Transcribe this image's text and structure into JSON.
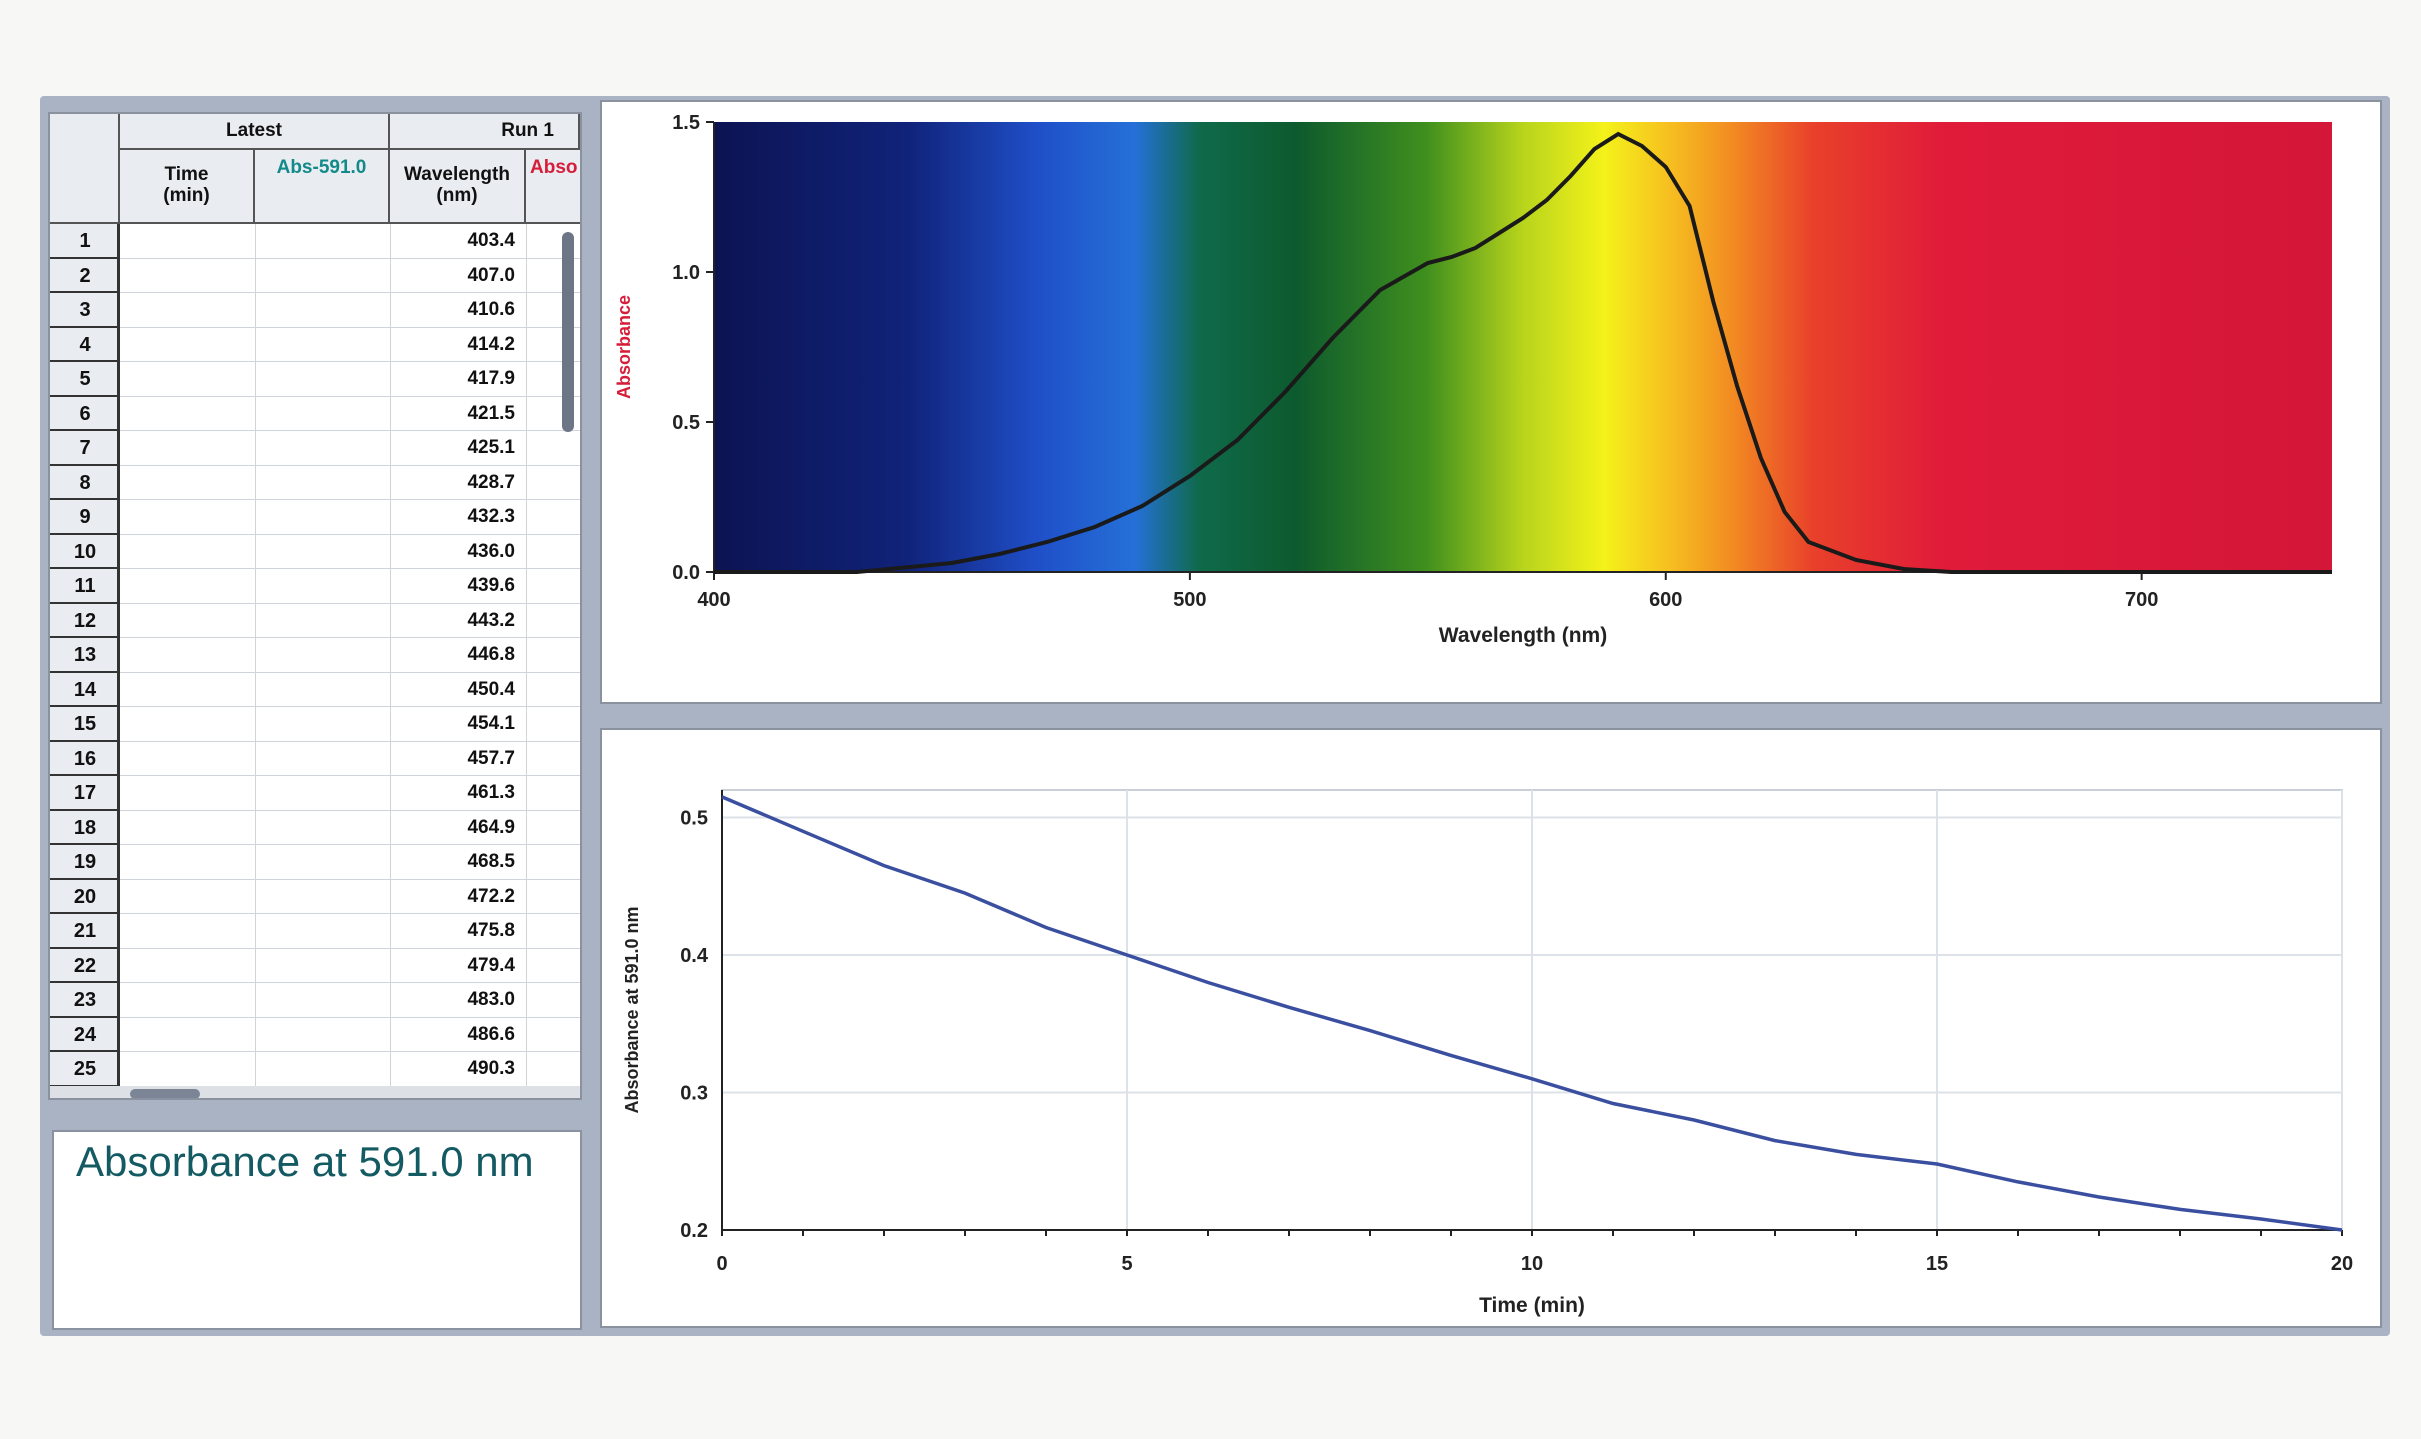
{
  "table": {
    "header": {
      "group_latest": "Latest",
      "group_run": "Run 1",
      "time_col": "Time",
      "time_unit": "(min)",
      "abs591_col": "Abs-591.0",
      "wavelength_col": "Wavelength",
      "wavelength_unit": "(nm)",
      "abs_col_partial": "Abso"
    },
    "row_numbers": [
      "1",
      "2",
      "3",
      "4",
      "5",
      "6",
      "7",
      "8",
      "9",
      "10",
      "11",
      "12",
      "13",
      "14",
      "15",
      "16",
      "17",
      "18",
      "19",
      "20",
      "21",
      "22",
      "23",
      "24",
      "25"
    ],
    "wavelengths": [
      "403.4",
      "407.0",
      "410.6",
      "414.2",
      "417.9",
      "421.5",
      "425.1",
      "428.7",
      "432.3",
      "436.0",
      "439.6",
      "443.2",
      "446.8",
      "450.4",
      "454.1",
      "457.7",
      "461.3",
      "464.9",
      "468.5",
      "472.2",
      "475.8",
      "479.4",
      "483.0",
      "486.6",
      "490.3"
    ]
  },
  "meter": {
    "label": "Absorbance at 591.0 nm"
  },
  "colors": {
    "spectrum_line": "#1a1a1a",
    "kinetics_line": "#3b4fa0",
    "abs_label": "#d61d3a",
    "meter_text": "#145a63"
  },
  "chart_data": [
    {
      "type": "line",
      "title": "",
      "xlabel": "Wavelength (nm)",
      "ylabel": "Absorbance",
      "xlim": [
        400,
        740
      ],
      "ylim": [
        0,
        1.5
      ],
      "xticks": [
        "400",
        "500",
        "600",
        "700"
      ],
      "yticks": [
        "0.0",
        "0.5",
        "1.0",
        "1.5"
      ],
      "background": "visible spectrum gradient",
      "grid": false,
      "series": [
        {
          "x": [
            400,
            430,
            450,
            460,
            470,
            480,
            490,
            500,
            510,
            520,
            530,
            540,
            550,
            555,
            560,
            565,
            570,
            575,
            580,
            585,
            590,
            595,
            600,
            605,
            610,
            615,
            620,
            625,
            630,
            640,
            650,
            660,
            680,
            700,
            720,
            740
          ],
          "y": [
            0.0,
            0.0,
            0.03,
            0.06,
            0.1,
            0.15,
            0.22,
            0.32,
            0.44,
            0.6,
            0.78,
            0.94,
            1.03,
            1.05,
            1.08,
            1.13,
            1.18,
            1.24,
            1.32,
            1.41,
            1.46,
            1.42,
            1.35,
            1.22,
            0.9,
            0.62,
            0.38,
            0.2,
            0.1,
            0.04,
            0.01,
            0.0,
            0.0,
            0.0,
            0.0,
            0.0
          ]
        }
      ]
    },
    {
      "type": "line",
      "title": "",
      "xlabel": "Time (min)",
      "ylabel": "Absorbance at 591.0 nm",
      "xlim": [
        0,
        20
      ],
      "ylim": [
        0.2,
        0.52
      ],
      "xticks": [
        "0",
        "5",
        "10",
        "15",
        "20"
      ],
      "yticks": [
        "0.2",
        "0.3",
        "0.4",
        "0.5"
      ],
      "grid": true,
      "series": [
        {
          "x": [
            0,
            1,
            2,
            3,
            4,
            5,
            6,
            7,
            8,
            9,
            10,
            11,
            12,
            13,
            14,
            15,
            16,
            17,
            18,
            19,
            20
          ],
          "y": [
            0.515,
            0.49,
            0.465,
            0.445,
            0.42,
            0.4,
            0.38,
            0.362,
            0.345,
            0.327,
            0.31,
            0.292,
            0.28,
            0.265,
            0.255,
            0.248,
            0.235,
            0.224,
            0.215,
            0.208,
            0.2
          ]
        }
      ]
    }
  ]
}
